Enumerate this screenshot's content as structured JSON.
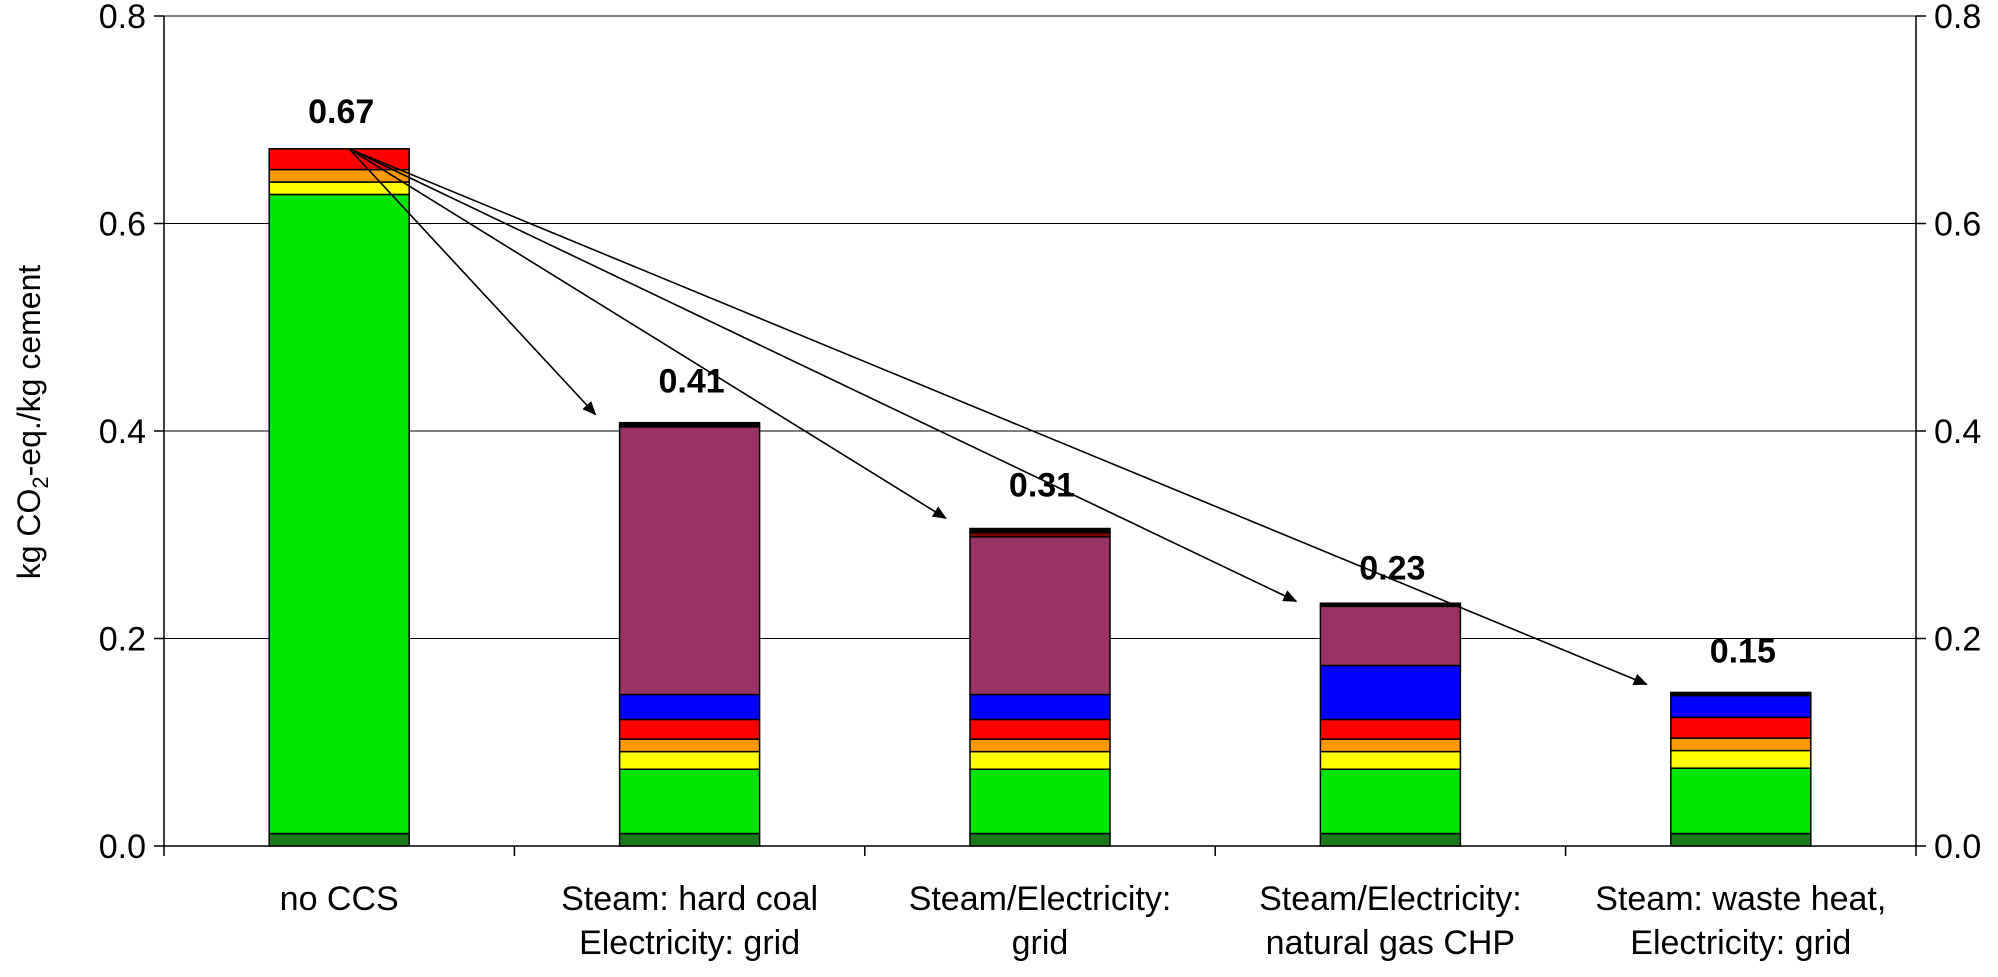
{
  "chart_data": {
    "type": "bar",
    "stacked": true,
    "ylabel": {
      "pre": "kg CO",
      "sub": "2",
      "post": "-eq./kg cement"
    },
    "ylim": [
      0,
      0.8
    ],
    "yticks": [
      "0.0",
      "0.2",
      "0.4",
      "0.6",
      "0.8"
    ],
    "ytick_values": [
      0,
      0.2,
      0.4,
      0.6,
      0.8
    ],
    "secondary_axis": true,
    "grid": true,
    "categories": [
      [
        "no CCS"
      ],
      [
        "Steam: hard coal",
        "Electricity: grid"
      ],
      [
        "Steam/Electricity:",
        "grid"
      ],
      [
        "Steam/Electricity:",
        "natural gas CHP"
      ],
      [
        "Steam: waste heat,",
        "Electricity: grid"
      ]
    ],
    "totals": [
      0.67,
      0.41,
      0.31,
      0.23,
      0.15
    ],
    "total_labels": [
      "0.67",
      "0.41",
      "0.31",
      "0.23",
      "0.15"
    ],
    "segment_colors": [
      "#1a7a1a",
      "#00e600",
      "#ffff00",
      "#ff9900",
      "#ff0000",
      "#0000ff",
      "#993366",
      "#800000",
      "#000000"
    ],
    "series": [
      {
        "color": "#1a7a1a",
        "values": [
          0.012,
          0.012,
          0.012,
          0.012,
          0.012
        ]
      },
      {
        "color": "#00e600",
        "values": [
          0.616,
          0.062,
          0.062,
          0.062,
          0.063
        ]
      },
      {
        "color": "#ffff00",
        "values": [
          0.012,
          0.017,
          0.017,
          0.017,
          0.017
        ]
      },
      {
        "color": "#ff9900",
        "values": [
          0.012,
          0.012,
          0.012,
          0.012,
          0.012
        ]
      },
      {
        "color": "#ff0000",
        "values": [
          0.02,
          0.019,
          0.019,
          0.019,
          0.02
        ]
      },
      {
        "color": "#0000ff",
        "values": [
          0.0,
          0.024,
          0.024,
          0.052,
          0.021
        ]
      },
      {
        "color": "#993366",
        "values": [
          0.0,
          0.258,
          0.152,
          0.057,
          0.0
        ]
      },
      {
        "color": "#800000",
        "values": [
          0.0,
          0.0,
          0.004,
          0.0,
          0.0
        ]
      },
      {
        "color": "#000000",
        "values": [
          0.0,
          0.004,
          0.004,
          0.003,
          0.003
        ]
      }
    ],
    "annotations": {
      "arrows_from_category": 0,
      "arrows_to_categories": [
        1,
        2,
        3,
        4
      ]
    }
  }
}
